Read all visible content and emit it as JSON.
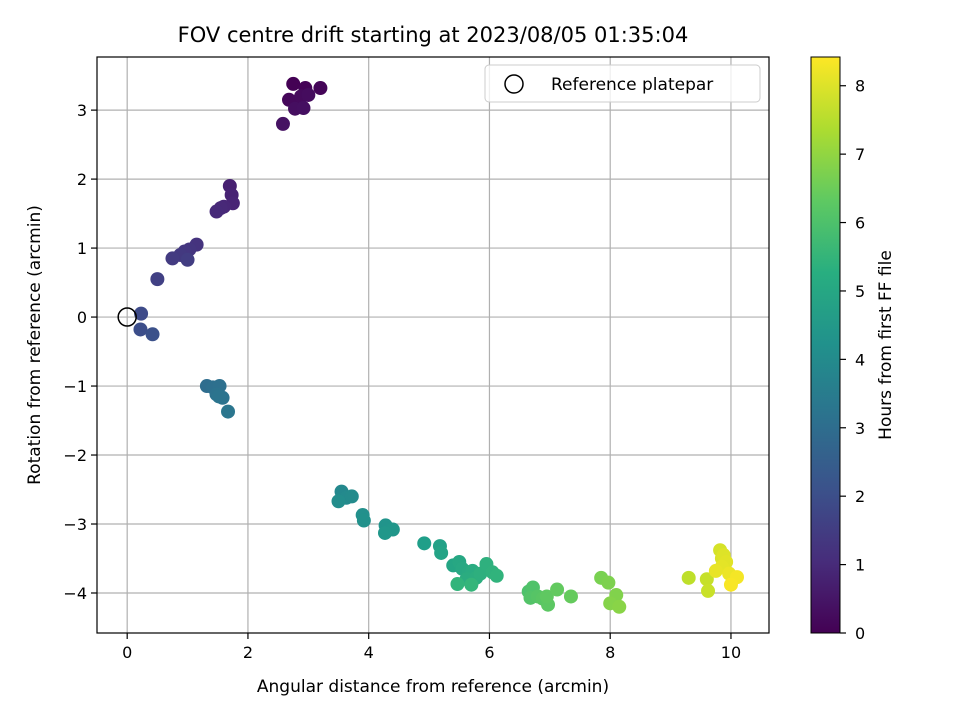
{
  "chart_data": {
    "type": "scatter",
    "title": "FOV centre drift starting at 2023/08/05 01:35:04",
    "xlabel": "Angular distance from reference (arcmin)",
    "ylabel": "Rotation from reference (arcmin)",
    "xlim": [
      -0.5,
      10.63
    ],
    "ylim": [
      -4.58,
      3.77
    ],
    "xticks": [
      0,
      2,
      4,
      6,
      8,
      10
    ],
    "yticks": [
      -4,
      -3,
      -2,
      -1,
      0,
      1,
      2,
      3
    ],
    "xtick_labels": [
      "0",
      "2",
      "4",
      "6",
      "8",
      "10"
    ],
    "ytick_labels": [
      "−4",
      "−3",
      "−2",
      "−1",
      "0",
      "1",
      "2",
      "3"
    ],
    "grid": true,
    "colormap": "viridis",
    "colorbar": {
      "label": "Hours from first FF file",
      "range": [
        0,
        8.42
      ],
      "ticks": [
        0,
        1,
        2,
        3,
        4,
        5,
        6,
        7,
        8
      ],
      "tick_labels": [
        "0",
        "1",
        "2",
        "3",
        "4",
        "5",
        "6",
        "7",
        "8"
      ]
    },
    "legend": {
      "position": "top-right",
      "entries": [
        {
          "label": "Reference platepar",
          "marker": "hollow-circle"
        }
      ]
    },
    "reference_point": {
      "x": 0,
      "y": 0
    },
    "points": [
      {
        "x": 2.75,
        "y": 3.38,
        "h": 0.0
      },
      {
        "x": 2.95,
        "y": 3.32,
        "h": 0.05
      },
      {
        "x": 3.2,
        "y": 3.32,
        "h": 0.1
      },
      {
        "x": 2.68,
        "y": 3.15,
        "h": 0.15
      },
      {
        "x": 2.8,
        "y": 3.12,
        "h": 0.18
      },
      {
        "x": 2.88,
        "y": 3.2,
        "h": 0.22
      },
      {
        "x": 3.0,
        "y": 3.22,
        "h": 0.26
      },
      {
        "x": 2.78,
        "y": 3.02,
        "h": 0.3
      },
      {
        "x": 2.92,
        "y": 3.03,
        "h": 0.34
      },
      {
        "x": 2.58,
        "y": 2.8,
        "h": 0.4
      },
      {
        "x": 1.7,
        "y": 1.9,
        "h": 0.75
      },
      {
        "x": 1.73,
        "y": 1.77,
        "h": 0.8
      },
      {
        "x": 1.75,
        "y": 1.65,
        "h": 0.85
      },
      {
        "x": 1.6,
        "y": 1.6,
        "h": 0.9
      },
      {
        "x": 1.55,
        "y": 1.58,
        "h": 0.95
      },
      {
        "x": 1.48,
        "y": 1.53,
        "h": 1.0
      },
      {
        "x": 1.15,
        "y": 1.05,
        "h": 1.25
      },
      {
        "x": 1.03,
        "y": 0.98,
        "h": 1.3
      },
      {
        "x": 0.95,
        "y": 0.95,
        "h": 1.35
      },
      {
        "x": 0.88,
        "y": 0.9,
        "h": 1.4
      },
      {
        "x": 0.75,
        "y": 0.85,
        "h": 1.45
      },
      {
        "x": 1.0,
        "y": 0.83,
        "h": 1.5
      },
      {
        "x": 0.5,
        "y": 0.55,
        "h": 1.6
      },
      {
        "x": 0.23,
        "y": 0.05,
        "h": 1.9
      },
      {
        "x": 0.22,
        "y": -0.18,
        "h": 2.0
      },
      {
        "x": 0.42,
        "y": -0.25,
        "h": 2.1
      },
      {
        "x": 1.32,
        "y": -1.0,
        "h": 3.0
      },
      {
        "x": 1.42,
        "y": -1.02,
        "h": 3.05
      },
      {
        "x": 1.53,
        "y": -1.0,
        "h": 3.1
      },
      {
        "x": 1.48,
        "y": -1.12,
        "h": 3.15
      },
      {
        "x": 1.58,
        "y": -1.17,
        "h": 3.2
      },
      {
        "x": 1.52,
        "y": -1.15,
        "h": 3.25
      },
      {
        "x": 1.67,
        "y": -1.37,
        "h": 3.3
      },
      {
        "x": 3.55,
        "y": -2.53,
        "h": 3.95
      },
      {
        "x": 3.63,
        "y": -2.62,
        "h": 4.0
      },
      {
        "x": 3.72,
        "y": -2.6,
        "h": 4.05
      },
      {
        "x": 3.5,
        "y": -2.67,
        "h": 4.1
      },
      {
        "x": 3.9,
        "y": -2.87,
        "h": 4.2
      },
      {
        "x": 3.92,
        "y": -2.95,
        "h": 4.25
      },
      {
        "x": 4.28,
        "y": -3.02,
        "h": 4.35
      },
      {
        "x": 4.4,
        "y": -3.08,
        "h": 4.4
      },
      {
        "x": 4.27,
        "y": -3.13,
        "h": 4.45
      },
      {
        "x": 4.92,
        "y": -3.28,
        "h": 4.7
      },
      {
        "x": 5.18,
        "y": -3.32,
        "h": 4.8
      },
      {
        "x": 5.2,
        "y": -3.42,
        "h": 4.85
      },
      {
        "x": 5.4,
        "y": -3.6,
        "h": 4.95
      },
      {
        "x": 5.5,
        "y": -3.55,
        "h": 5.0
      },
      {
        "x": 5.55,
        "y": -3.65,
        "h": 5.05
      },
      {
        "x": 5.65,
        "y": -3.7,
        "h": 5.1
      },
      {
        "x": 5.72,
        "y": -3.68,
        "h": 5.15
      },
      {
        "x": 5.62,
        "y": -3.8,
        "h": 5.2
      },
      {
        "x": 5.78,
        "y": -3.78,
        "h": 5.25
      },
      {
        "x": 5.85,
        "y": -3.72,
        "h": 5.3
      },
      {
        "x": 5.95,
        "y": -3.58,
        "h": 5.35
      },
      {
        "x": 6.05,
        "y": -3.7,
        "h": 5.4
      },
      {
        "x": 6.12,
        "y": -3.75,
        "h": 5.45
      },
      {
        "x": 5.47,
        "y": -3.87,
        "h": 5.5
      },
      {
        "x": 5.7,
        "y": -3.88,
        "h": 5.55
      },
      {
        "x": 6.65,
        "y": -3.98,
        "h": 6.0
      },
      {
        "x": 6.72,
        "y": -3.92,
        "h": 6.05
      },
      {
        "x": 6.68,
        "y": -4.07,
        "h": 6.1
      },
      {
        "x": 6.8,
        "y": -4.05,
        "h": 6.15
      },
      {
        "x": 6.88,
        "y": -4.08,
        "h": 6.2
      },
      {
        "x": 6.97,
        "y": -4.17,
        "h": 6.25
      },
      {
        "x": 6.95,
        "y": -4.05,
        "h": 6.3
      },
      {
        "x": 7.12,
        "y": -3.95,
        "h": 6.35
      },
      {
        "x": 7.35,
        "y": -4.05,
        "h": 6.4
      },
      {
        "x": 7.85,
        "y": -3.78,
        "h": 6.7
      },
      {
        "x": 7.97,
        "y": -3.85,
        "h": 6.75
      },
      {
        "x": 8.1,
        "y": -4.03,
        "h": 6.8
      },
      {
        "x": 8.0,
        "y": -4.15,
        "h": 6.85
      },
      {
        "x": 8.15,
        "y": -4.2,
        "h": 6.9
      },
      {
        "x": 9.3,
        "y": -3.78,
        "h": 7.6
      },
      {
        "x": 9.6,
        "y": -3.8,
        "h": 7.7
      },
      {
        "x": 9.62,
        "y": -3.97,
        "h": 7.75
      },
      {
        "x": 9.82,
        "y": -3.38,
        "h": 7.9
      },
      {
        "x": 9.85,
        "y": -3.5,
        "h": 7.95
      },
      {
        "x": 9.88,
        "y": -3.45,
        "h": 8.0
      },
      {
        "x": 9.92,
        "y": -3.55,
        "h": 8.05
      },
      {
        "x": 9.85,
        "y": -3.62,
        "h": 8.1
      },
      {
        "x": 9.75,
        "y": -3.68,
        "h": 8.15
      },
      {
        "x": 9.97,
        "y": -3.72,
        "h": 8.2
      },
      {
        "x": 10.1,
        "y": -3.77,
        "h": 8.3
      },
      {
        "x": 10.0,
        "y": -3.88,
        "h": 8.35
      }
    ]
  }
}
